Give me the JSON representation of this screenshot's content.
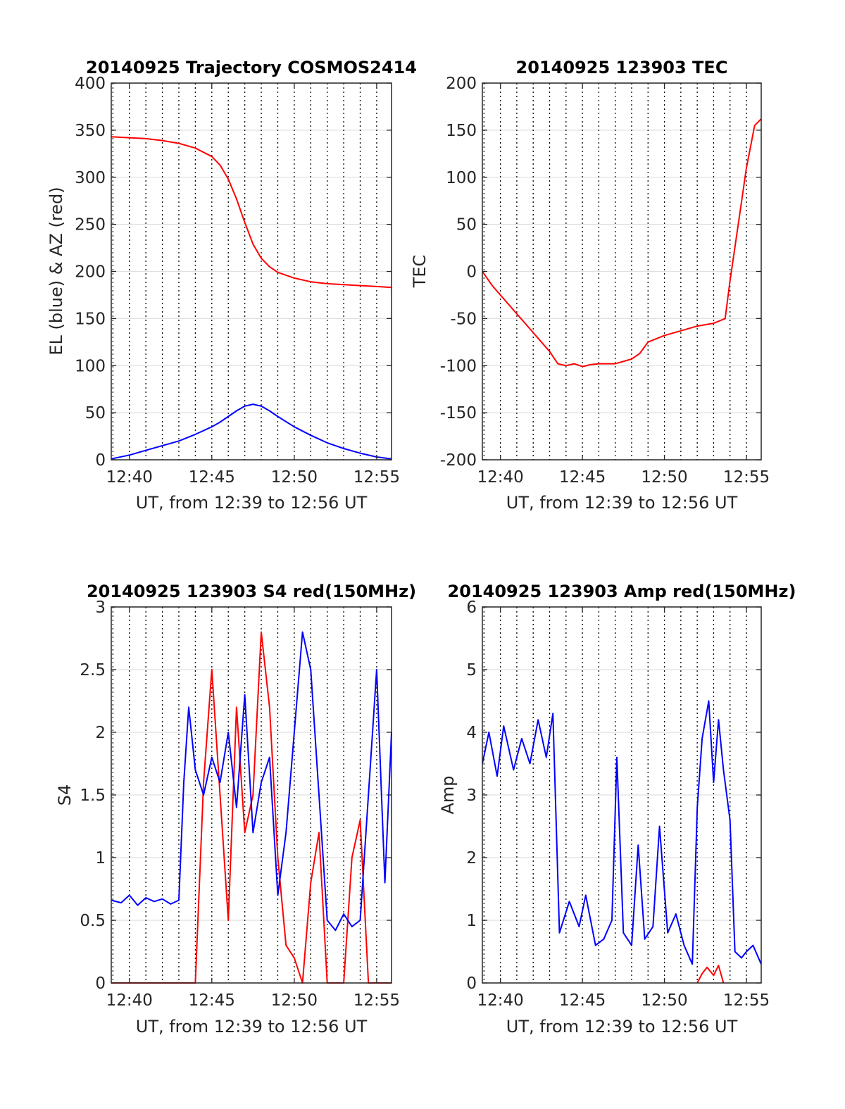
{
  "figure": {
    "background": "#ffffff"
  },
  "colors": {
    "red": "#ff0000",
    "blue": "#0000ff",
    "grid": "#000000",
    "axis": "#262626"
  },
  "chart_data": [
    {
      "id": "trajectory",
      "type": "line",
      "title": "20140925 Trajectory COSMOS2414",
      "xlabel": "UT, from 12:39 to 12:56 UT",
      "ylabel": "EL (blue) & AZ (red)",
      "xlim": [
        12.9,
        29.9
      ],
      "ylim": [
        0,
        400
      ],
      "xticks": [
        14,
        19,
        24,
        29
      ],
      "xticklabels": [
        "12:40",
        "12:45",
        "12:50",
        "12:55"
      ],
      "yticks": [
        0,
        50,
        100,
        150,
        200,
        250,
        300,
        350,
        400
      ],
      "yticklabels": [
        "0",
        "50",
        "100",
        "150",
        "200",
        "250",
        "300",
        "350",
        "400"
      ],
      "series": [
        {
          "color": "#ff0000",
          "x": [
            12.9,
            14,
            15,
            16,
            17,
            18,
            19,
            19.5,
            20,
            20.5,
            21,
            21.5,
            22,
            22.5,
            23,
            24,
            25,
            26,
            27,
            28,
            29,
            29.9
          ],
          "y": [
            343,
            342,
            341,
            339,
            336,
            331,
            322,
            313,
            298,
            277,
            252,
            229,
            214,
            205,
            199,
            193,
            189,
            187,
            186,
            185,
            184,
            183
          ]
        },
        {
          "color": "#0000ff",
          "x": [
            12.9,
            14,
            15,
            16,
            17,
            18,
            19,
            19.5,
            20,
            20.5,
            21,
            21.5,
            22,
            22.5,
            23,
            24,
            25,
            26,
            27,
            28,
            29,
            29.9
          ],
          "y": [
            1,
            5,
            10,
            15,
            20,
            27,
            35,
            40,
            46,
            52,
            57,
            59,
            57,
            52,
            46,
            35,
            26,
            18,
            12,
            7,
            3,
            1
          ]
        }
      ]
    },
    {
      "id": "tec",
      "type": "line",
      "title": "20140925 123903 TEC",
      "xlabel": "UT, from 12:39 to 12:56 UT",
      "ylabel": "TEC",
      "xlim": [
        12.9,
        29.9
      ],
      "ylim": [
        -200,
        200
      ],
      "xticks": [
        14,
        19,
        24,
        29
      ],
      "xticklabels": [
        "12:40",
        "12:45",
        "12:50",
        "12:55"
      ],
      "yticks": [
        -200,
        -150,
        -100,
        -50,
        0,
        50,
        100,
        150,
        200
      ],
      "yticklabels": [
        "-200",
        "-150",
        "-100",
        "-50",
        "0",
        "50",
        "100",
        "150",
        "200"
      ],
      "series": [
        {
          "color": "#ff0000",
          "x": [
            12.9,
            13.5,
            14,
            15,
            16,
            17,
            17.5,
            18,
            18.5,
            19,
            19.5,
            20,
            21,
            22,
            22.5,
            23,
            24,
            25,
            26,
            27,
            27.7,
            28,
            28.5,
            29,
            29.5,
            29.9
          ],
          "y": [
            0,
            -15,
            -25,
            -45,
            -65,
            -85,
            -98,
            -100,
            -98,
            -101,
            -99,
            -98,
            -98,
            -93,
            -87,
            -75,
            -68,
            -63,
            -58,
            -55,
            -50,
            -10,
            50,
            110,
            155,
            162
          ]
        }
      ]
    },
    {
      "id": "s4",
      "type": "line",
      "title": "20140925 123903 S4 red(150MHz)",
      "xlabel": "UT, from 12:39 to 12:56 UT",
      "ylabel": "S4",
      "xlim": [
        12.9,
        29.9
      ],
      "ylim": [
        0,
        3
      ],
      "xticks": [
        14,
        19,
        24,
        29
      ],
      "xticklabels": [
        "12:40",
        "12:45",
        "12:50",
        "12:55"
      ],
      "yticks": [
        0,
        0.5,
        1,
        1.5,
        2,
        2.5,
        3
      ],
      "yticklabels": [
        "0",
        "0.5",
        "1",
        "1.5",
        "2",
        "2.5",
        "3"
      ],
      "series": [
        {
          "color": "#ff0000",
          "x": [
            12.9,
            13.8,
            14.5,
            15,
            16,
            17,
            17.3,
            18,
            18.5,
            19,
            19.5,
            20,
            20.5,
            21,
            21.5,
            22,
            22.5,
            23,
            23.5,
            24,
            24.5,
            25,
            25.5,
            26,
            26.5,
            27,
            27.5,
            28,
            28.5,
            29,
            29.5,
            29.9
          ],
          "y": [
            0,
            0,
            0,
            0,
            0,
            0,
            0,
            0,
            1.6,
            2.5,
            1.5,
            0.5,
            2.2,
            1.2,
            1.5,
            2.8,
            2.2,
            1.0,
            0.3,
            0.2,
            0.0,
            0.8,
            1.2,
            0.0,
            0.0,
            0.0,
            1.0,
            1.3,
            0.0,
            0.0,
            0.0,
            0.0
          ]
        },
        {
          "color": "#0000ff",
          "x": [
            12.9,
            13.5,
            14,
            14.5,
            15,
            15.5,
            16,
            16.5,
            17,
            17.3,
            17.6,
            18,
            18.5,
            19,
            19.5,
            20,
            20.5,
            21,
            21.5,
            22,
            22.5,
            23,
            23.5,
            24,
            24.5,
            25,
            25.5,
            26,
            26.5,
            27,
            27.5,
            28,
            28.5,
            29,
            29.5,
            29.9
          ],
          "y": [
            0.66,
            0.64,
            0.7,
            0.62,
            0.68,
            0.65,
            0.67,
            0.63,
            0.66,
            1.6,
            2.2,
            1.7,
            1.5,
            1.8,
            1.6,
            2.0,
            1.4,
            2.3,
            1.2,
            1.6,
            1.8,
            0.7,
            1.2,
            2.0,
            2.8,
            2.5,
            1.5,
            0.5,
            0.42,
            0.55,
            0.45,
            0.5,
            1.5,
            2.5,
            0.8,
            2.0
          ]
        }
      ]
    },
    {
      "id": "amp",
      "type": "line",
      "title": "20140925 123903 Amp red(150MHz)",
      "xlabel": "UT, from 12:39 to 12:56 UT",
      "ylabel": "Amp",
      "xlim": [
        12.9,
        29.9
      ],
      "ylim": [
        0,
        6
      ],
      "xticks": [
        14,
        19,
        24,
        29
      ],
      "xticklabels": [
        "12:40",
        "12:45",
        "12:50",
        "12:55"
      ],
      "yticks": [
        0,
        1,
        2,
        3,
        4,
        5,
        6
      ],
      "yticklabels": [
        "0",
        "1",
        "2",
        "3",
        "4",
        "5",
        "6"
      ],
      "series": [
        {
          "color": "#0000ff",
          "x": [
            12.9,
            13.3,
            13.8,
            14.2,
            14.8,
            15.3,
            15.8,
            16.3,
            16.8,
            17.2,
            17.6,
            18.2,
            18.8,
            19.2,
            19.8,
            20.3,
            20.8,
            21.1,
            21.5,
            22.0,
            22.4,
            22.8,
            23.3,
            23.7,
            24.2,
            24.7,
            25.2,
            25.7,
            26.0,
            26.3,
            26.7,
            27.0,
            27.3,
            27.6,
            28.0,
            28.3,
            28.7,
            29.0,
            29.4,
            29.9
          ],
          "y": [
            3.5,
            4.0,
            3.3,
            4.1,
            3.4,
            3.9,
            3.5,
            4.2,
            3.6,
            4.3,
            0.8,
            1.3,
            0.9,
            1.4,
            0.6,
            0.7,
            1.0,
            3.6,
            0.8,
            0.6,
            2.2,
            0.7,
            0.9,
            2.5,
            0.8,
            1.1,
            0.6,
            0.3,
            2.8,
            3.9,
            4.5,
            3.2,
            4.2,
            3.4,
            2.6,
            0.5,
            0.4,
            0.5,
            0.6,
            0.3
          ]
        },
        {
          "color": "#ff0000",
          "x": [
            26.0,
            26.3,
            26.6,
            27.0,
            27.3,
            27.6
          ],
          "y": [
            0.0,
            0.15,
            0.25,
            0.12,
            0.28,
            0.0
          ]
        }
      ]
    }
  ]
}
